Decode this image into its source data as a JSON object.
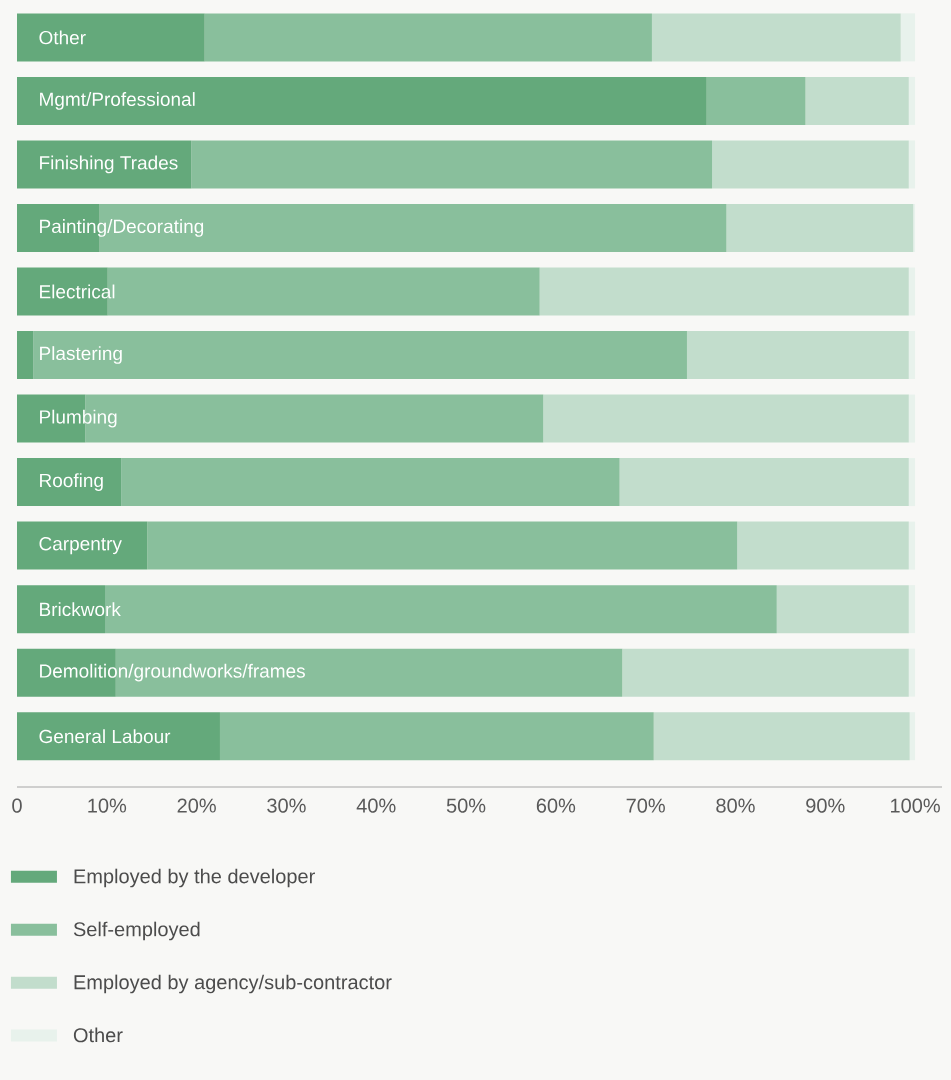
{
  "chart_data": {
    "type": "bar",
    "orientation": "horizontal",
    "stacked": true,
    "categories": [
      "Other",
      "Mgmt/Professional",
      "Finishing Trades",
      "Painting/Decorating",
      "Electrical",
      "Plastering",
      "Plumbing",
      "Roofing",
      "Carpentry",
      "Brickwork",
      "Demolition/groundworks/frames",
      "General Labour"
    ],
    "series": [
      {
        "name": "Employed by the developer",
        "color": "#64a97b",
        "values": [
          20.9,
          76.8,
          19.4,
          9.2,
          10.1,
          1.8,
          7.6,
          11.6,
          14.5,
          9.8,
          11.0,
          22.6
        ]
      },
      {
        "name": "Self-employed",
        "color": "#89bf9c",
        "values": [
          49.8,
          11.0,
          58.0,
          69.8,
          48.1,
          72.8,
          51.0,
          55.5,
          65.7,
          74.8,
          56.4,
          48.3
        ]
      },
      {
        "name": "Employed by agency/sub-contractor",
        "color": "#c2ddcc",
        "values": [
          27.7,
          11.5,
          21.9,
          20.8,
          41.1,
          24.7,
          40.7,
          32.2,
          19.1,
          14.7,
          31.9,
          28.5
        ]
      },
      {
        "name": "Other",
        "color": "#e8f2ec",
        "values": [
          1.6,
          0.7,
          0.7,
          0.2,
          0.7,
          0.7,
          0.7,
          0.7,
          0.7,
          0.7,
          0.7,
          0.6
        ]
      }
    ],
    "xlim": [
      0,
      103
    ],
    "xticks": [
      0,
      {
        "value": 10,
        "label": "10%"
      },
      {
        "value": 20,
        "label": "20%"
      },
      {
        "value": 30,
        "label": "30%"
      },
      {
        "value": 40,
        "label": "40%"
      },
      {
        "value": 50,
        "label": "50%"
      },
      {
        "value": 60,
        "label": "60%"
      },
      {
        "value": 70,
        "label": "70%"
      },
      {
        "value": 80,
        "label": "80%"
      },
      {
        "value": 90,
        "label": "90%"
      },
      {
        "value": 100,
        "label": "100%"
      }
    ],
    "legend": "bottom"
  }
}
